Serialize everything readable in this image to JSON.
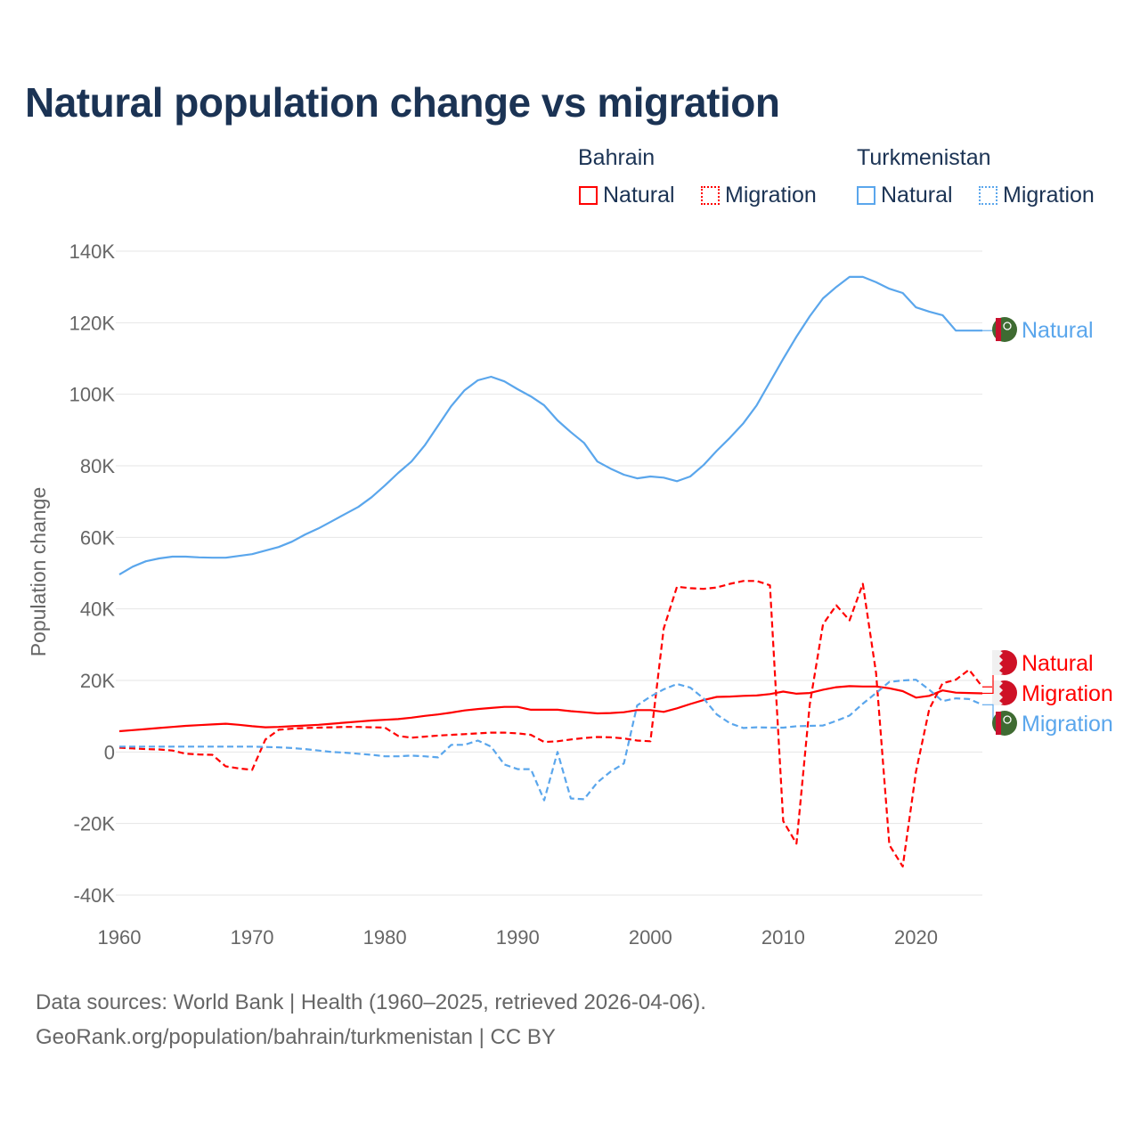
{
  "title": "Natural population change vs migration",
  "legend": {
    "groups": [
      {
        "name": "Bahrain",
        "items": [
          {
            "label": "Natural",
            "style": "solid"
          },
          {
            "label": "Migration",
            "style": "dotted"
          }
        ],
        "color": "#ff0000"
      },
      {
        "name": "Turkmenistan",
        "items": [
          {
            "label": "Natural",
            "style": "solid"
          },
          {
            "label": "Migration",
            "style": "dotted"
          }
        ],
        "color": "#5aa6ec"
      }
    ]
  },
  "footer": {
    "line1": "Data sources: World Bank | Health (1960–2025, retrieved 2026-04-06).",
    "line2": "GeoRank.org/population/bahrain/turkmenistan | CC BY"
  },
  "chart_data": {
    "type": "line",
    "title": "Natural population change vs migration",
    "xlabel": "",
    "ylabel": "Population change",
    "xlim": [
      1960,
      2025
    ],
    "ylim": [
      -40000,
      140000
    ],
    "xticks": [
      1960,
      1970,
      1980,
      1990,
      2000,
      2010,
      2020
    ],
    "xtick_labels": [
      "1960",
      "1970",
      "1980",
      "1990",
      "2000",
      "2010",
      "2020"
    ],
    "yticks": [
      -40000,
      -20000,
      0,
      20000,
      40000,
      60000,
      80000,
      100000,
      120000,
      140000
    ],
    "ytick_labels": [
      "-40K",
      "-20K",
      "0",
      "20K",
      "40K",
      "60K",
      "80K",
      "100K",
      "120K",
      "140K"
    ],
    "grid": true,
    "legend_position": "top-right",
    "x_start": 1960,
    "series": [
      {
        "name": "Turkmenistan Natural",
        "country": "Turkmenistan",
        "end_label": "Natural",
        "color": "#5aa6ec",
        "dash": false,
        "values": [
          49.6,
          51.8,
          53.3,
          54.1,
          54.6,
          54.6,
          54.4,
          54.3,
          54.3,
          54.8,
          55.3,
          56.3,
          57.3,
          58.8,
          60.8,
          62.5,
          64.5,
          66.5,
          68.5,
          71.2,
          74.5,
          78,
          81.2,
          85.7,
          91.2,
          96.7,
          101.1,
          103.9,
          104.9,
          103.6,
          101.4,
          99.4,
          96.9,
          92.7,
          89.4,
          86.4,
          81.2,
          79.2,
          77.5,
          76.5,
          77,
          76.7,
          75.7,
          77,
          80.2,
          84.2,
          87.9,
          91.9,
          96.9,
          103.4,
          109.9,
          116.1,
          121.8,
          126.8,
          130,
          132.8,
          132.8,
          131.3,
          129.5,
          128.3,
          124.3,
          123.1,
          122.1,
          117.8,
          117.8,
          117.8
        ]
      },
      {
        "name": "Bahrain Migration",
        "country": "Bahrain",
        "end_label": "Migration",
        "color": "#ff0000",
        "dash": true,
        "values": [
          1.2,
          1.0,
          0.8,
          0.7,
          0.4,
          -0.5,
          -0.7,
          -0.8,
          -4,
          -4.6,
          -5,
          3.5,
          6.2,
          6.5,
          6.7,
          6.8,
          6.9,
          7,
          7,
          6.9,
          6.8,
          4.5,
          4,
          4.3,
          4.6,
          4.8,
          5,
          5.2,
          5.4,
          5.4,
          5.2,
          4.8,
          2.8,
          3,
          3.5,
          3.9,
          4.2,
          4.1,
          3.8,
          3.2,
          3,
          34.5,
          46.2,
          45.8,
          45.6,
          46,
          47,
          47.8,
          47.8,
          46.6,
          -19.3,
          -25.6,
          13.3,
          35.7,
          41,
          36.8,
          47,
          22,
          -26,
          -32,
          -5.5,
          12,
          19.2,
          20.2,
          23,
          18.2
        ]
      },
      {
        "name": "Bahrain Natural",
        "country": "Bahrain",
        "end_label": "Natural",
        "color": "#ff0000",
        "dash": false,
        "values": [
          5.8,
          6.1,
          6.4,
          6.7,
          7,
          7.3,
          7.5,
          7.7,
          7.9,
          7.6,
          7.2,
          6.9,
          7,
          7.2,
          7.4,
          7.6,
          7.9,
          8.2,
          8.5,
          8.8,
          9,
          9.2,
          9.6,
          10.1,
          10.5,
          11,
          11.6,
          12,
          12.3,
          12.6,
          12.6,
          11.8,
          11.8,
          11.8,
          11.4,
          11.1,
          10.8,
          10.9,
          11.1,
          11.7,
          11.7,
          11.2,
          12.2,
          13.4,
          14.5,
          15.4,
          15.5,
          15.7,
          15.8,
          16.2,
          16.9,
          16.3,
          16.5,
          17.4,
          18.1,
          18.4,
          18.3,
          18.3,
          17.8,
          17,
          15.2,
          15.7,
          17.2,
          16.6,
          16.5,
          16.4
        ]
      },
      {
        "name": "Turkmenistan Migration",
        "country": "Turkmenistan",
        "end_label": "Migration",
        "color": "#5aa6ec",
        "dash": true,
        "values": [
          1.5,
          1.5,
          1.5,
          1.5,
          1.5,
          1.5,
          1.5,
          1.5,
          1.5,
          1.5,
          1.5,
          1.4,
          1.3,
          1.1,
          0.8,
          0.4,
          0,
          -0.2,
          -0.5,
          -0.8,
          -1.2,
          -1.2,
          -1,
          -1.2,
          -1.5,
          2,
          2,
          3.2,
          1.5,
          -3.5,
          -4.8,
          -4.8,
          -13.5,
          0,
          -13,
          -13.2,
          -8.5,
          -5.5,
          -3.2,
          13,
          15.5,
          17.5,
          19,
          18,
          15,
          10.5,
          8,
          6.7,
          6.9,
          6.8,
          6.8,
          7.2,
          7.3,
          7.4,
          8.7,
          10.2,
          13.5,
          16.5,
          19.6,
          20,
          20.2,
          17.4,
          14.2,
          15,
          14.8,
          13.2
        ]
      }
    ],
    "value_unit": "thousands"
  }
}
